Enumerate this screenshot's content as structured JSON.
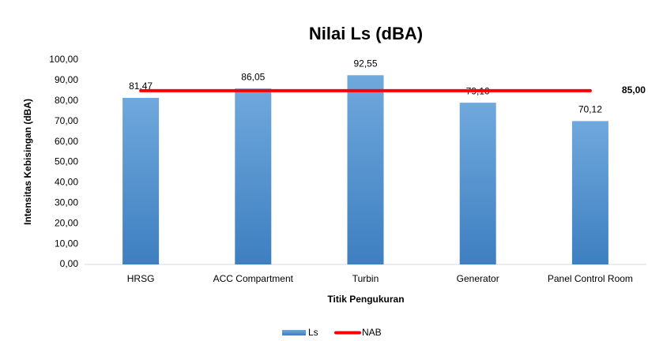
{
  "chart_data": {
    "type": "bar",
    "title": "Nilai Ls (dBA)",
    "x_label": "Titik Pengukuran",
    "y_label": "Intensitas Kebisingan (dBA)",
    "categories": [
      "HRSG",
      "ACC Compartment",
      "Turbin",
      "Generator",
      "Panel Control Room"
    ],
    "series": [
      {
        "name": "Ls",
        "color": "#5b9bd5",
        "values": [
          81.47,
          86.05,
          92.55,
          79.1,
          70.12
        ],
        "value_labels": [
          "81,47",
          "86,05",
          "92,55",
          "79,10",
          "70,12"
        ]
      },
      {
        "name": "NAB",
        "type": "line",
        "color": "#ff0000",
        "values": [
          85,
          85,
          85,
          85,
          85
        ],
        "value_labels": [
          null,
          null,
          null,
          null,
          "85,00"
        ]
      }
    ],
    "ylim": [
      0,
      100
    ],
    "yticks": [
      {
        "value": 0,
        "label": "0,00"
      },
      {
        "value": 10,
        "label": "10,00"
      },
      {
        "value": 20,
        "label": "20,00"
      },
      {
        "value": 30,
        "label": "30,00"
      },
      {
        "value": 40,
        "label": "40,00"
      },
      {
        "value": 50,
        "label": "50,00"
      },
      {
        "value": 60,
        "label": "60,00"
      },
      {
        "value": 70,
        "label": "70,00"
      },
      {
        "value": 80,
        "label": "80,00"
      },
      {
        "value": 90,
        "label": "90,00"
      },
      {
        "value": {
          "__placeholder": false
        },
        "label": "100,00"
      }
    ],
    "legend": "bottom"
  }
}
